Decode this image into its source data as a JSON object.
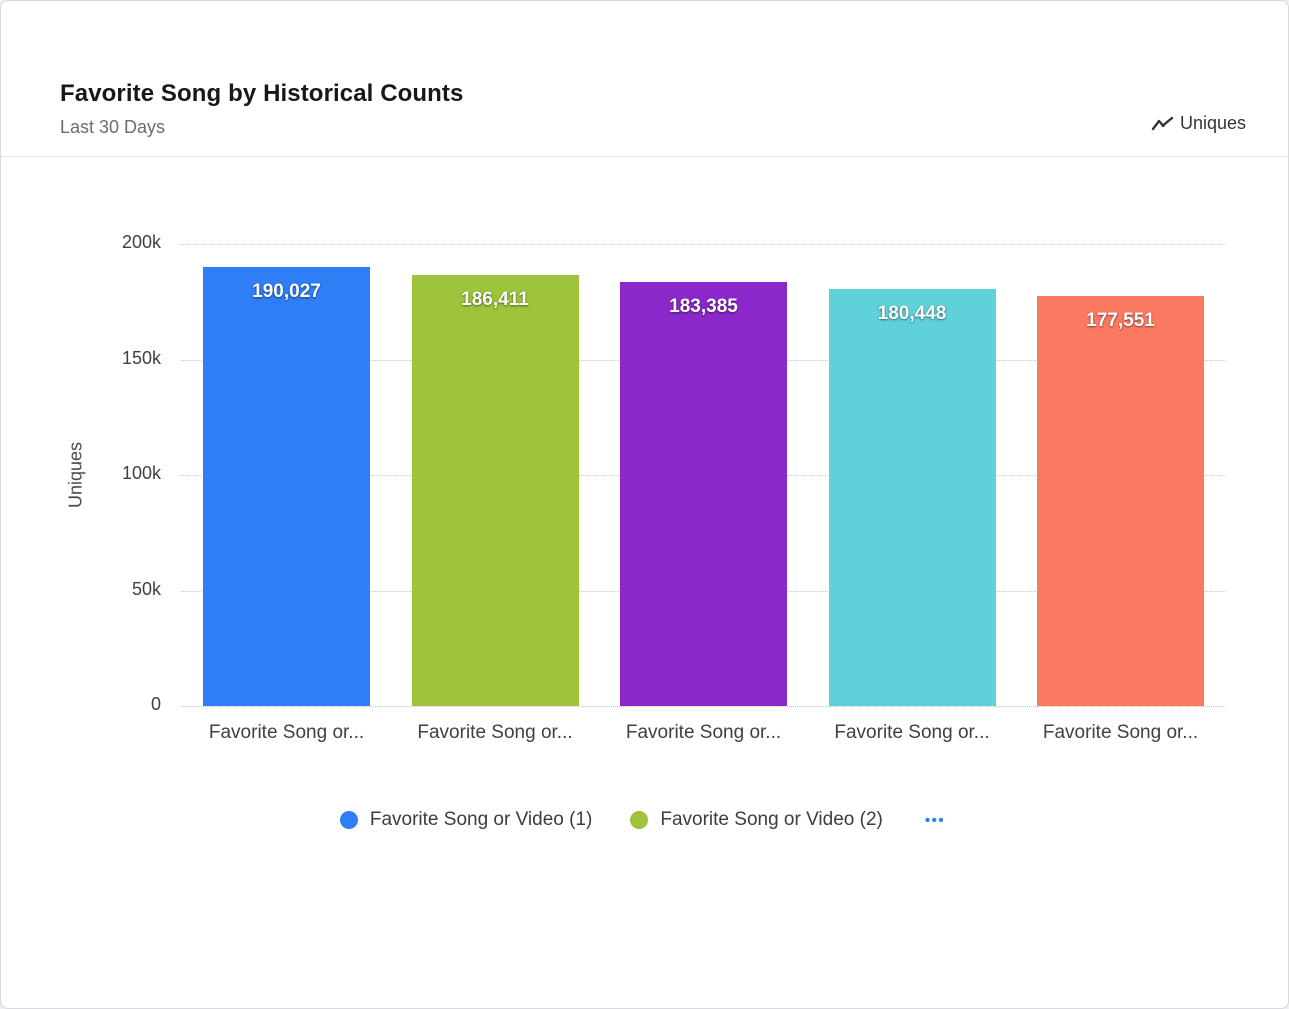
{
  "header": {
    "title": "Favorite Song by Historical Counts",
    "subtitle": "Last 30 Days",
    "metric_label": "Uniques"
  },
  "chart_data": {
    "type": "bar",
    "title": "Favorite Song by Historical Counts",
    "subtitle": "Last 30 Days",
    "xlabel": "",
    "ylabel": "Uniques",
    "ylim": [
      0,
      200000
    ],
    "grid": "horizontal-dotted",
    "legend_position": "bottom",
    "yticks": [
      {
        "value": 200000,
        "label": "200k"
      },
      {
        "value": 150000,
        "label": "150k"
      },
      {
        "value": 100000,
        "label": "100k"
      },
      {
        "value": 50000,
        "label": "50k"
      },
      {
        "value": 0,
        "label": "0"
      }
    ],
    "categories": [
      "Favorite Song or...",
      "Favorite Song or...",
      "Favorite Song or...",
      "Favorite Song or...",
      "Favorite Song or..."
    ],
    "bars": [
      {
        "value": 190027,
        "label": "190,027",
        "color": "#2f7ef6"
      },
      {
        "value": 186411,
        "label": "186,411",
        "color": "#9dc43b"
      },
      {
        "value": 183385,
        "label": "183,385",
        "color": "#8a28c9"
      },
      {
        "value": 180448,
        "label": "180,448",
        "color": "#5ed2d8"
      },
      {
        "value": 177551,
        "label": "177,551",
        "color": "#fb7961"
      }
    ]
  },
  "legend": {
    "items": [
      {
        "label": "Favorite Song or Video (1)",
        "color": "#2f7ef6"
      },
      {
        "label": "Favorite Song or Video (2)",
        "color": "#9dc43b"
      }
    ],
    "more_label": "•••"
  }
}
